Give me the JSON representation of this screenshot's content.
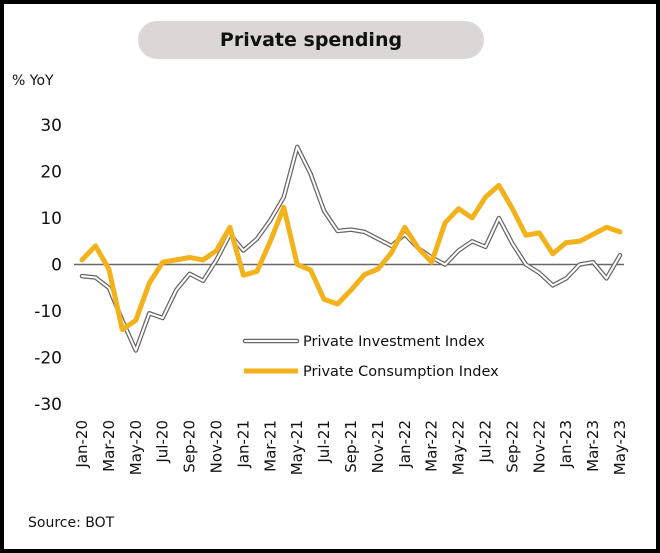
{
  "chart_data": {
    "type": "line",
    "title": "Private spending",
    "ylabel": "% YoY",
    "xlabel": "",
    "ylim": [
      -30,
      30
    ],
    "yticks": [
      30,
      20,
      10,
      0,
      -10,
      -20,
      -30
    ],
    "grid": false,
    "zero_line": true,
    "legend_position": "center-right",
    "x": [
      "Jan-20",
      "Feb-20",
      "Mar-20",
      "Apr-20",
      "May-20",
      "Jun-20",
      "Jul-20",
      "Aug-20",
      "Sep-20",
      "Oct-20",
      "Nov-20",
      "Dec-20",
      "Jan-21",
      "Feb-21",
      "Mar-21",
      "Apr-21",
      "May-21",
      "Jun-21",
      "Jul-21",
      "Aug-21",
      "Sep-21",
      "Oct-21",
      "Nov-21",
      "Dec-21",
      "Jan-22",
      "Feb-22",
      "Mar-22",
      "Apr-22",
      "May-22",
      "Jun-22",
      "Jul-22",
      "Aug-22",
      "Sep-22",
      "Oct-22",
      "Nov-22",
      "Dec-22",
      "Jan-23",
      "Feb-23",
      "Mar-23",
      "Apr-23",
      "May-23"
    ],
    "xtick_labels": [
      "Jan-20",
      "Mar-20",
      "May-20",
      "Jul-20",
      "Sep-20",
      "Nov-20",
      "Jan-21",
      "Mar-21",
      "May-21",
      "Jul-21",
      "Sep-21",
      "Nov-21",
      "Jan-22",
      "Mar-22",
      "May-22",
      "Jul-22",
      "Sep-22",
      "Nov-22",
      "Jan-23",
      "Mar-23",
      "May-23"
    ],
    "series": [
      {
        "name": "Private Investment Index",
        "style": "double-outline",
        "color": "#6b6565",
        "values": [
          -2.5,
          -2.8,
          -5,
          -12,
          -18.5,
          -10.5,
          -11.5,
          -5.5,
          -2,
          -3.5,
          1,
          6.5,
          3,
          5.5,
          9.5,
          14.5,
          25.3,
          19.5,
          11.5,
          7.2,
          7.5,
          7,
          5.5,
          4,
          6.5,
          3.5,
          1.5,
          0,
          3,
          5,
          3.8,
          10,
          4.5,
          0,
          -1.8,
          -4.5,
          -3,
          0,
          0.5,
          -3,
          2
        ]
      },
      {
        "name": "Private Consumption Index",
        "style": "solid-thick",
        "color": "#f3b21b",
        "values": [
          1,
          4,
          -1,
          -14,
          -12,
          -4,
          0.5,
          1,
          1.5,
          1,
          3,
          8,
          -2.3,
          -1.5,
          5,
          12.3,
          0,
          -1.2,
          -7.5,
          -8.5,
          -5.5,
          -2.2,
          -1,
          2.5,
          8,
          3.5,
          0.5,
          9,
          12,
          10,
          14.5,
          17,
          12,
          6.3,
          6.8,
          2.3,
          4.7,
          5,
          6.5,
          8,
          7
        ]
      }
    ],
    "source": "Source: BOT"
  }
}
